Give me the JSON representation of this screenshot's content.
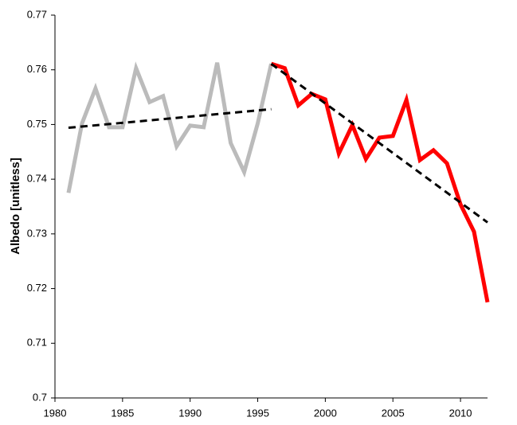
{
  "chart_data": {
    "type": "line",
    "y_label": "Albedo [unitless]",
    "xlim": [
      1980,
      2012
    ],
    "xticks": [
      1980,
      1985,
      1990,
      1995,
      2000,
      2005,
      2010
    ],
    "ylim": [
      0.7,
      0.77
    ],
    "yticks": [
      0.7,
      0.71,
      0.72,
      0.73,
      0.74,
      0.75,
      0.76,
      0.77
    ],
    "series": [
      {
        "color": "#bbbbbb",
        "width": 5,
        "dash": false,
        "x": [
          1981,
          1982,
          1983,
          1984,
          1985,
          1986,
          1987,
          1988,
          1989,
          1990,
          1991,
          1992,
          1993,
          1994,
          1995,
          1996
        ],
        "values": [
          0.7375,
          0.7502,
          0.7566,
          0.7495,
          0.7495,
          0.7603,
          0.7541,
          0.7552,
          0.746,
          0.7498,
          0.7495,
          0.7613,
          0.7466,
          0.7413,
          0.7502,
          0.7611
        ]
      },
      {
        "color": "#ff0000",
        "width": 5,
        "dash": false,
        "x": [
          1996,
          1997,
          1998,
          1999,
          2000,
          2001,
          2002,
          2003,
          2004,
          2005,
          2006,
          2007,
          2008,
          2009,
          2010,
          2011,
          2012
        ],
        "values": [
          0.7611,
          0.7603,
          0.7535,
          0.7556,
          0.7546,
          0.7447,
          0.7499,
          0.7437,
          0.7476,
          0.7479,
          0.7545,
          0.7435,
          0.7453,
          0.7429,
          0.7354,
          0.7304,
          0.7175
        ]
      },
      {
        "color": "#000000",
        "width": 3,
        "dash": true,
        "x": [
          1981,
          1996
        ],
        "values": [
          0.7494,
          0.7528
        ]
      },
      {
        "color": "#000000",
        "width": 3,
        "dash": true,
        "x": [
          1996,
          2012
        ],
        "values": [
          0.7611,
          0.7321
        ]
      }
    ]
  }
}
